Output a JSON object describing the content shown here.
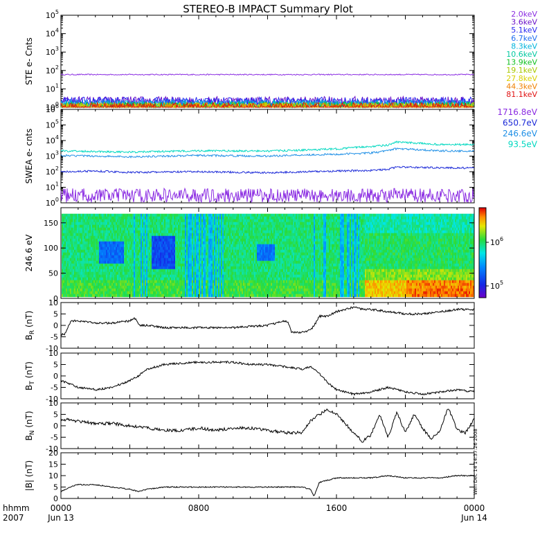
{
  "title": "STEREO-B IMPACT Summary Plot",
  "stamp": "Wen Dec 14 14:37:26 2008",
  "time_axis": {
    "labels": [
      {
        "top": "0000",
        "bottom": "Jun 13",
        "hour": 0
      },
      {
        "top": "0800",
        "bottom": "",
        "hour": 8
      },
      {
        "top": "1600",
        "bottom": "",
        "hour": 16
      },
      {
        "top": "0000",
        "bottom": "Jun 14",
        "hour": 24
      }
    ],
    "corner_top": "hhmm",
    "corner_bottom": "2007"
  },
  "colors": {
    "ste_channels": [
      "#8a2be2",
      "#6a11c9",
      "#2828f0",
      "#1e6ef0",
      "#00b4dc",
      "#00c8a0",
      "#10c020",
      "#a8c800",
      "#d8d000",
      "#f08000",
      "#e01010"
    ],
    "swea_channels": [
      "#8a2be2",
      "#1c2ad8",
      "#1e8fe6",
      "#00d8c0"
    ],
    "trace": "#000000"
  },
  "chart_data": [
    {
      "type": "line",
      "panel": "STE",
      "ylabel": "STE e- Cnts",
      "yscale": "log",
      "ylim": [
        1,
        100000
      ],
      "yticks": [
        {
          "m": "10",
          "e": "0"
        },
        {
          "m": "10",
          "e": "1"
        },
        {
          "m": "10",
          "e": "2"
        },
        {
          "m": "10",
          "e": "3"
        },
        {
          "m": "10",
          "e": "4"
        },
        {
          "m": "10",
          "e": "5"
        }
      ],
      "x_hours": [
        0,
        24
      ],
      "series": [
        {
          "name": "2.0keV",
          "level": 60
        },
        {
          "name": "3.6keV",
          "level": 2.2
        },
        {
          "name": "5.1keV",
          "level": 2.0
        },
        {
          "name": "6.7keV",
          "level": 1.6
        },
        {
          "name": "8.3keV",
          "level": 1.4
        },
        {
          "name": "10.6keV",
          "level": 1.2
        },
        {
          "name": "13.9keV",
          "level": 1.1
        },
        {
          "name": "19.1keV",
          "level": 1.05
        },
        {
          "name": "27.8keV",
          "level": 1.0
        },
        {
          "name": "44.3keV",
          "level": 1.0
        },
        {
          "name": "81.1keV",
          "level": 1.0
        }
      ]
    },
    {
      "type": "line",
      "panel": "SWEA",
      "ylabel": "SWEA e- cnts",
      "yscale": "log",
      "ylim": [
        1,
        1000000
      ],
      "yticks": [
        {
          "m": "10",
          "e": "0"
        },
        {
          "m": "10",
          "e": "1"
        },
        {
          "m": "10",
          "e": "2"
        },
        {
          "m": "10",
          "e": "3"
        },
        {
          "m": "10",
          "e": "4"
        },
        {
          "m": "10",
          "e": "5"
        },
        {
          "m": "10",
          "e": "6"
        }
      ],
      "series": [
        {
          "name": "1716.8eV",
          "x": [
            0,
            6,
            12,
            18,
            19.5,
            24
          ],
          "y": [
            3,
            3,
            3,
            3,
            3,
            3
          ]
        },
        {
          "name": "650.7eV",
          "x": [
            0,
            2,
            4,
            8,
            12,
            16,
            18,
            19,
            19.5,
            22,
            24
          ],
          "y": [
            100,
            110,
            90,
            100,
            85,
            110,
            120,
            140,
            200,
            180,
            170
          ]
        },
        {
          "name": "246.6eV",
          "x": [
            0,
            2,
            4,
            8,
            12,
            14,
            16,
            18,
            18.5,
            19.5,
            22,
            24
          ],
          "y": [
            1100,
            1000,
            900,
            1100,
            1000,
            1200,
            1300,
            1600,
            1800,
            3000,
            2200,
            2000
          ]
        },
        {
          "name": "93.5eV",
          "x": [
            0,
            2,
            4,
            8,
            12,
            14,
            16,
            17,
            18,
            19,
            19.5,
            22,
            24
          ],
          "y": [
            2200,
            2000,
            1800,
            2200,
            2100,
            2400,
            2900,
            3500,
            4200,
            5000,
            8000,
            5500,
            5500
          ]
        }
      ]
    },
    {
      "type": "heatmap",
      "panel": "PAD",
      "ylabel": "246.6 eV",
      "ylim": [
        0,
        180
      ],
      "yticks": [
        0,
        50,
        100,
        150
      ],
      "colorbar": {
        "ticks": [
          {
            "m": "10",
            "e": "6"
          },
          {
            "m": "10",
            "e": "5"
          }
        ]
      }
    },
    {
      "type": "line",
      "panel": "BR",
      "ylabel": "B_R (nT)",
      "ylim": [
        -10,
        10
      ],
      "yticks": [
        10,
        5,
        0,
        -5,
        -10
      ],
      "x": [
        0,
        0.2,
        0.6,
        1,
        2,
        3,
        4,
        4.3,
        4.6,
        5,
        6,
        8,
        10,
        12,
        13,
        13.2,
        13.4,
        14,
        14.5,
        14.8,
        15,
        15.5,
        16,
        17,
        17.5,
        18,
        19,
        20,
        21,
        22,
        23,
        24
      ],
      "y": [
        -4,
        -4,
        2,
        2,
        1,
        1,
        2,
        3,
        0,
        0,
        -1,
        -1,
        -1,
        0,
        2,
        1,
        -3,
        -3,
        -2,
        1,
        4,
        4,
        6,
        8,
        7,
        7,
        6,
        5,
        5,
        6,
        7,
        7
      ]
    },
    {
      "type": "line",
      "panel": "BT",
      "ylabel": "B_T (nT)",
      "ylim": [
        -10,
        10
      ],
      "yticks": [
        10,
        5,
        0,
        -5,
        -10
      ],
      "x": [
        0,
        1,
        2,
        3,
        4,
        4.5,
        5,
        6,
        8,
        10,
        11,
        12,
        13,
        14,
        14.5,
        15,
        15.5,
        16,
        17,
        18,
        19,
        20,
        21,
        22,
        23,
        24
      ],
      "y": [
        -2,
        -5,
        -6,
        -5,
        -2,
        0,
        3,
        5,
        6,
        6,
        5,
        5,
        4,
        3,
        4,
        1,
        -3,
        -6,
        -8,
        -7,
        -5,
        -7,
        -8,
        -7,
        -6,
        -7
      ]
    },
    {
      "type": "line",
      "panel": "BN",
      "ylabel": "B_N (nT)",
      "ylim": [
        -10,
        10
      ],
      "yticks": [
        10,
        5,
        0,
        -5,
        -10
      ],
      "x": [
        0,
        1,
        2,
        3,
        4,
        5,
        6,
        7,
        8,
        9,
        10,
        11,
        12,
        13,
        14,
        14.5,
        15,
        15.5,
        16,
        17,
        17.5,
        18,
        18.5,
        19,
        19.5,
        20,
        20.5,
        21,
        21.5,
        22,
        22.5,
        23,
        23.5,
        24
      ],
      "y": [
        3,
        2,
        1,
        1,
        0,
        -1,
        -2,
        -2,
        -1,
        -2,
        -1,
        -1,
        -2,
        -3,
        -3,
        2,
        5,
        7,
        5,
        -3,
        -7,
        -4,
        5,
        -5,
        6,
        -3,
        5,
        -1,
        -6,
        -2,
        8,
        -2,
        -3,
        3
      ]
    },
    {
      "type": "line",
      "panel": "B",
      "ylabel": "|B| (nT)",
      "ylim": [
        0,
        20
      ],
      "yticks": [
        20,
        15,
        10,
        5,
        0
      ],
      "x": [
        0,
        0.5,
        1,
        2,
        3,
        4,
        4.5,
        5,
        6,
        8,
        10,
        12,
        13,
        14,
        14.5,
        14.7,
        15,
        16,
        17,
        18,
        19,
        20,
        21,
        22,
        23,
        24
      ],
      "y": [
        3,
        5,
        6,
        6,
        5,
        4,
        3,
        4,
        5,
        5,
        5,
        5,
        5,
        5,
        4,
        1,
        7,
        9,
        9,
        9,
        10,
        9,
        9,
        9,
        10,
        10
      ]
    }
  ]
}
